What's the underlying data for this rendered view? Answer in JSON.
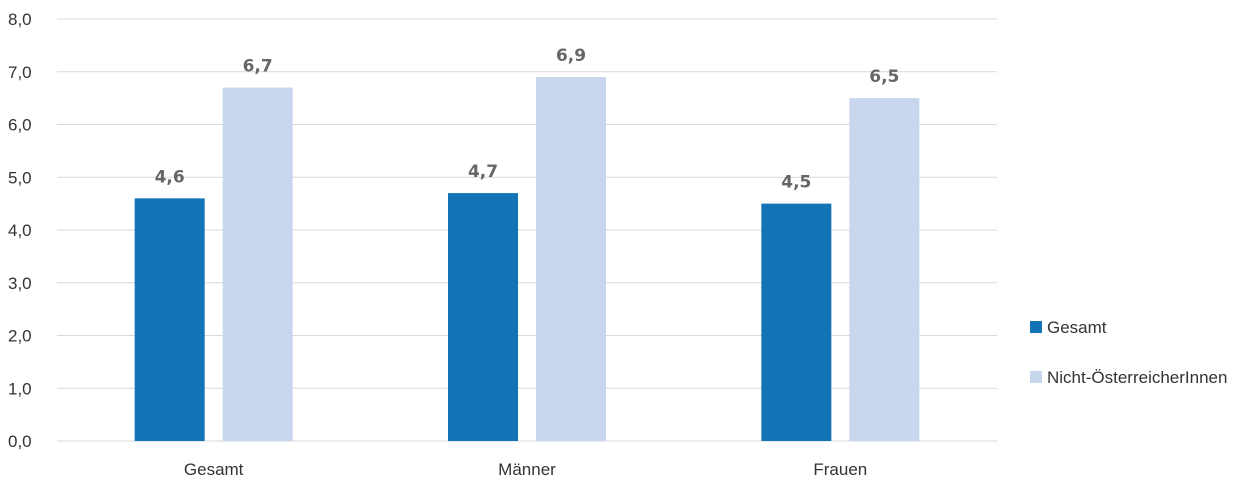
{
  "chart_data": {
    "type": "bar",
    "categories": [
      "Gesamt",
      "Männer",
      "Frauen"
    ],
    "series": [
      {
        "name": "Gesamt",
        "color": "#1273b5",
        "values": [
          4.6,
          4.7,
          4.5
        ],
        "labels": [
          "4,6",
          "4,7",
          "4,5"
        ]
      },
      {
        "name": "Nicht-ÖsterreicherInnen",
        "color": "#c8d6ee",
        "values": [
          6.7,
          6.9,
          6.5
        ],
        "labels": [
          "6,7",
          "6,9",
          "6,5"
        ]
      }
    ],
    "y_ticks": [
      {
        "value": 0,
        "label": "0,0"
      },
      {
        "value": 1,
        "label": "1,0"
      },
      {
        "value": 2,
        "label": "2,0"
      },
      {
        "value": 3,
        "label": "3,0"
      },
      {
        "value": 4,
        "label": "4,0"
      },
      {
        "value": 5,
        "label": "5,0"
      },
      {
        "value": 6,
        "label": "6,0"
      },
      {
        "value": 7,
        "label": "7,0"
      },
      {
        "value": 8,
        "label": "8,0"
      }
    ],
    "ylim": [
      0,
      8
    ],
    "grid": true,
    "legend_position": "right"
  }
}
